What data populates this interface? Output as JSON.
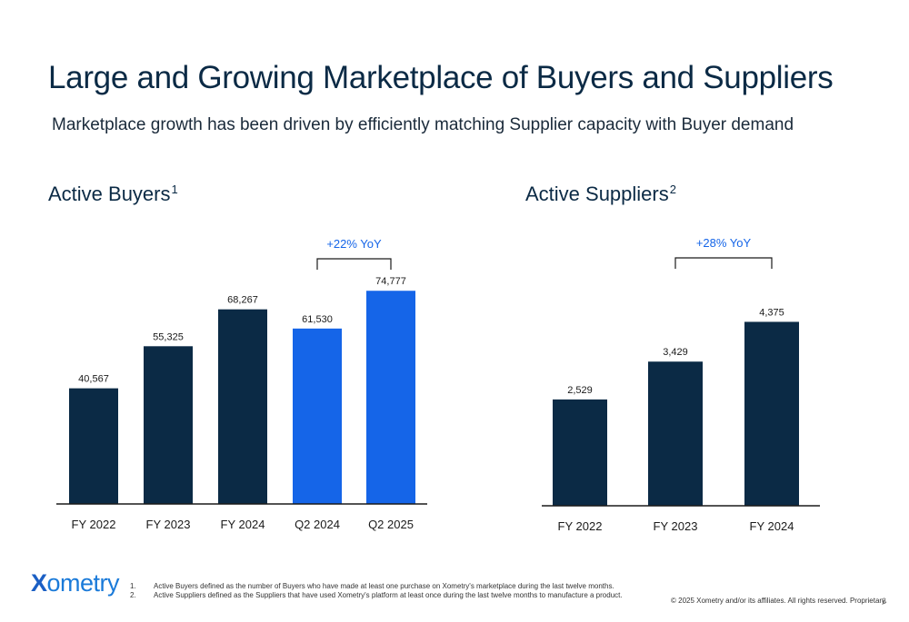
{
  "title": "Large and Growing Marketplace of Buyers and Suppliers",
  "subtitle": "Marketplace growth has been driven by efficiently matching Supplier capacity with Buyer demand",
  "colors": {
    "navy": "#0b2a45",
    "blue": "#1565e8",
    "axis": "#1a1a1a",
    "annotation": "#1565e8"
  },
  "chart_data": [
    {
      "type": "bar",
      "title": "Active Buyers",
      "title_sup": "1",
      "categories": [
        "FY 2022",
        "FY 2023",
        "FY 2024",
        "Q2 2024",
        "Q2 2025"
      ],
      "values": [
        40567,
        55325,
        68267,
        61530,
        74777
      ],
      "value_labels": [
        "40,567",
        "55,325",
        "68,267",
        "61,530",
        "74,777"
      ],
      "bar_colors": [
        "#0b2a45",
        "#0b2a45",
        "#0b2a45",
        "#1565e8",
        "#1565e8"
      ],
      "ylim": [
        0,
        86000
      ],
      "annotation": {
        "text": "+22% YoY",
        "from_index": 3,
        "to_index": 4
      },
      "grid": false,
      "legend": "none"
    },
    {
      "type": "bar",
      "title": "Active Suppliers",
      "title_sup": "2",
      "categories": [
        "FY 2022",
        "FY 2023",
        "FY 2024"
      ],
      "values": [
        2529,
        3429,
        4375
      ],
      "value_labels": [
        "2,529",
        "3,429",
        "4,375"
      ],
      "bar_colors": [
        "#0b2a45",
        "#0b2a45",
        "#0b2a45"
      ],
      "ylim": [
        0,
        5270
      ],
      "annotation": {
        "text": "+28% YoY",
        "from_index": 1,
        "to_index": 2
      },
      "grid": false,
      "legend": "none"
    }
  ],
  "logo": {
    "mark": "X",
    "rest": "ometry"
  },
  "footnotes": [
    {
      "num": "1.",
      "text": "Active Buyers defined as the number of Buyers who have made at least one purchase on Xometry's marketplace during the last twelve months."
    },
    {
      "num": "2.",
      "text": "Active Suppliers defined as the Suppliers that have used Xometry's platform at least once during the last twelve months to manufacture a product."
    }
  ],
  "copyright": "© 2025 Xometry and/or its affiliates. All rights reserved. Proprietary.",
  "page_number": "6"
}
